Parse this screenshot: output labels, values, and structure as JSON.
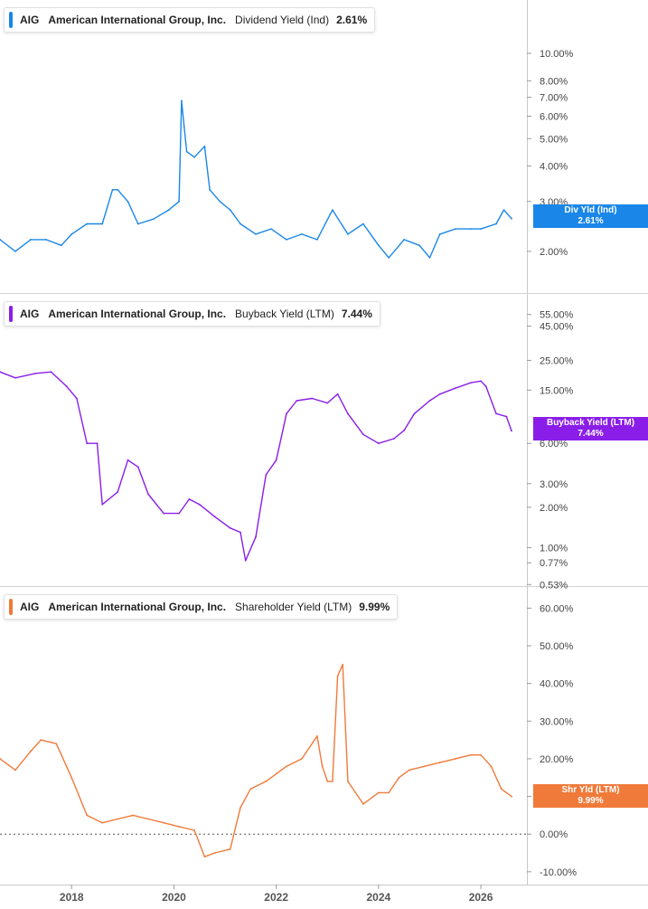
{
  "panels": [
    {
      "ticker": "AIG",
      "company": "American International Group, Inc.",
      "metric": "Dividend Yield (Ind)",
      "value": "2.61%",
      "tag_label": "Div Yld (Ind)",
      "tag_value": "2.61%",
      "color": "#1a87e8",
      "scale": "log",
      "ticks": [
        "10.00%",
        "8.00%",
        "7.00%",
        "6.00%",
        "5.00%",
        "4.00%",
        "3.00%",
        "2.00%"
      ],
      "tick_values": [
        10,
        8,
        7,
        6,
        5,
        4,
        3,
        2
      ],
      "ylim": [
        1.7,
        11.5
      ]
    },
    {
      "ticker": "AIG",
      "company": "American International Group, Inc.",
      "metric": "Buyback Yield (LTM)",
      "value": "7.44%",
      "tag_label": "Buyback Yield (LTM)",
      "tag_value": "7.44%",
      "color": "#8a1ee8",
      "scale": "log",
      "ticks": [
        "55.00%",
        "45.00%",
        "25.00%",
        "15.00%",
        "6.00%",
        "3.00%",
        "2.00%",
        "1.00%",
        "0.77%",
        "0.53%"
      ],
      "tick_values": [
        55,
        45,
        25,
        15,
        6,
        3,
        2,
        1,
        0.77,
        0.53
      ],
      "ylim": [
        0.5,
        62
      ]
    },
    {
      "ticker": "AIG",
      "company": "American International Group, Inc.",
      "metric": "Shareholder Yield (LTM)",
      "value": "9.99%",
      "tag_label": "Shr Yld (LTM)",
      "tag_value": "9.99%",
      "color": "#f07a3a",
      "scale": "linear",
      "ticks": [
        "60.00%",
        "50.00%",
        "40.00%",
        "30.00%",
        "20.00%",
        "10.00%",
        "0.00%",
        "-10.00%"
      ],
      "tick_values": [
        60,
        50,
        40,
        30,
        20,
        10,
        0,
        -10
      ],
      "ylim": [
        -11,
        62
      ]
    }
  ],
  "x_axis": {
    "labels": [
      "2018",
      "2020",
      "2022",
      "2024",
      "2026"
    ],
    "label_years": [
      2018,
      2020,
      2022,
      2024,
      2026
    ],
    "range": [
      2016.6,
      2026.9
    ]
  },
  "chart_data": [
    {
      "type": "line",
      "title": "AIG American International Group, Inc. Dividend Yield (Ind) 2.61%",
      "scale": "log",
      "ylim": [
        1.7,
        11.5
      ],
      "series": [
        {
          "name": "Dividend Yield (Ind)",
          "x": [
            2016.6,
            2016.9,
            2017.2,
            2017.5,
            2017.8,
            2018.0,
            2018.3,
            2018.6,
            2018.8,
            2018.9,
            2019.1,
            2019.3,
            2019.6,
            2019.9,
            2020.1,
            2020.15,
            2020.2,
            2020.25,
            2020.4,
            2020.6,
            2020.7,
            2020.9,
            2021.1,
            2021.3,
            2021.6,
            2021.9,
            2022.2,
            2022.5,
            2022.8,
            2023.1,
            2023.4,
            2023.7,
            2024.0,
            2024.2,
            2024.5,
            2024.8,
            2025.0,
            2025.2,
            2025.5,
            2025.8,
            2026.0,
            2026.3,
            2026.45,
            2026.6
          ],
          "values": [
            2.2,
            2.0,
            2.2,
            2.2,
            2.1,
            2.3,
            2.5,
            2.5,
            3.3,
            3.3,
            3.0,
            2.5,
            2.6,
            2.8,
            3.0,
            6.8,
            5.5,
            4.5,
            4.3,
            4.7,
            3.3,
            3.0,
            2.8,
            2.5,
            2.3,
            2.4,
            2.2,
            2.3,
            2.2,
            2.8,
            2.3,
            2.5,
            2.1,
            1.9,
            2.2,
            2.1,
            1.9,
            2.3,
            2.4,
            2.4,
            2.4,
            2.5,
            2.8,
            2.61
          ]
        }
      ]
    },
    {
      "type": "line",
      "title": "AIG American International Group, Inc. Buyback Yield (LTM) 7.44%",
      "scale": "log",
      "ylim": [
        0.5,
        62
      ],
      "series": [
        {
          "name": "Buyback Yield (LTM)",
          "x": [
            2016.6,
            2016.9,
            2017.3,
            2017.6,
            2017.9,
            2018.1,
            2018.3,
            2018.5,
            2018.6,
            2018.9,
            2019.1,
            2019.3,
            2019.5,
            2019.8,
            2020.1,
            2020.3,
            2020.5,
            2020.8,
            2021.1,
            2021.3,
            2021.4,
            2021.6,
            2021.8,
            2022.0,
            2022.2,
            2022.4,
            2022.7,
            2023.0,
            2023.2,
            2023.4,
            2023.7,
            2024.0,
            2024.3,
            2024.5,
            2024.7,
            2025.0,
            2025.2,
            2025.5,
            2025.8,
            2026.0,
            2026.1,
            2026.3,
            2026.5,
            2026.6
          ],
          "values": [
            20.5,
            18.5,
            20.0,
            20.5,
            16.0,
            13.0,
            6.0,
            6.0,
            2.1,
            2.6,
            4.5,
            4.0,
            2.5,
            1.8,
            1.8,
            2.3,
            2.1,
            1.7,
            1.4,
            1.3,
            0.8,
            1.2,
            3.5,
            4.5,
            10.0,
            12.5,
            13.0,
            12.0,
            14.0,
            10.0,
            7.0,
            6.0,
            6.5,
            7.5,
            10.0,
            12.5,
            14.0,
            15.5,
            17.0,
            17.5,
            16.0,
            10.0,
            9.5,
            7.44
          ]
        }
      ]
    },
    {
      "type": "line",
      "title": "AIG American International Group, Inc. Shareholder Yield (LTM) 9.99%",
      "scale": "linear",
      "ylim": [
        -11,
        62
      ],
      "series": [
        {
          "name": "Shareholder Yield (LTM)",
          "x": [
            2016.6,
            2016.9,
            2017.2,
            2017.4,
            2017.7,
            2018.0,
            2018.3,
            2018.6,
            2018.9,
            2019.2,
            2019.5,
            2019.8,
            2020.1,
            2020.4,
            2020.6,
            2020.8,
            2021.1,
            2021.3,
            2021.5,
            2021.8,
            2022.0,
            2022.2,
            2022.5,
            2022.8,
            2022.9,
            2023.0,
            2023.1,
            2023.2,
            2023.3,
            2023.4,
            2023.7,
            2024.0,
            2024.2,
            2024.4,
            2024.6,
            2024.9,
            2025.2,
            2025.5,
            2025.8,
            2026.0,
            2026.2,
            2026.4,
            2026.6
          ],
          "values": [
            20,
            17,
            22,
            25,
            24,
            15,
            5,
            3,
            4,
            5,
            4,
            3,
            2,
            1,
            -6,
            -5,
            -4,
            7,
            12,
            14,
            16,
            18,
            20,
            26,
            18,
            14,
            14,
            42,
            45,
            14,
            8,
            11,
            11,
            15,
            17,
            18,
            19,
            20,
            21,
            21,
            18,
            12,
            9.99
          ]
        }
      ]
    }
  ]
}
